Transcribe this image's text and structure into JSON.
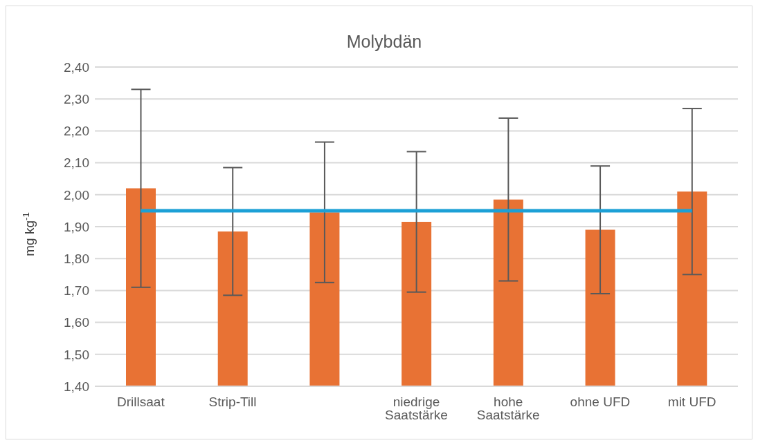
{
  "chart_data": {
    "type": "bar",
    "title": "Molybdän",
    "ylabel": "mg kg$^{-1}$",
    "categories": [
      "Drillsaat",
      "Strip-Till",
      null,
      "niedrige Saatstärke",
      "hohe Saatstärke",
      "ohne UFD",
      "mit UFD"
    ],
    "series": [
      {
        "color": "#e87234",
        "values": [
          2.02,
          1.885,
          1.945,
          1.915,
          1.985,
          1.89,
          2.01
        ],
        "errors": [
          0.31,
          0.2,
          0.22,
          0.22,
          0.255,
          0.2,
          0.26
        ]
      },
      {
        "type": "line",
        "color": "#1ca0d6",
        "values": [
          1.95,
          1.95,
          1.95,
          1.95,
          1.95,
          1.95,
          1.95
        ]
      }
    ],
    "ylim": [
      1.4,
      2.4
    ],
    "yticks": [
      {
        "value": 1.4,
        "label": "1,40"
      },
      {
        "value": 1.5,
        "label": "1,50"
      },
      {
        "value": 1.6,
        "label": "1,60"
      },
      {
        "value": 1.7,
        "label": "1,70"
      },
      {
        "value": 1.8,
        "label": "1,80"
      },
      {
        "value": 1.9,
        "label": "1,90"
      },
      {
        "value": 2.0,
        "label": "2,00"
      },
      {
        "value": 2.1,
        "label": "2,10"
      },
      {
        "value": 2.2,
        "label": "2,20"
      },
      {
        "value": 2.3,
        "label": "2,30"
      },
      {
        "value": 2.4,
        "label": "2,40"
      }
    ],
    "grid": "y",
    "legend": false,
    "marker": "none",
    "line_style": "solid"
  }
}
